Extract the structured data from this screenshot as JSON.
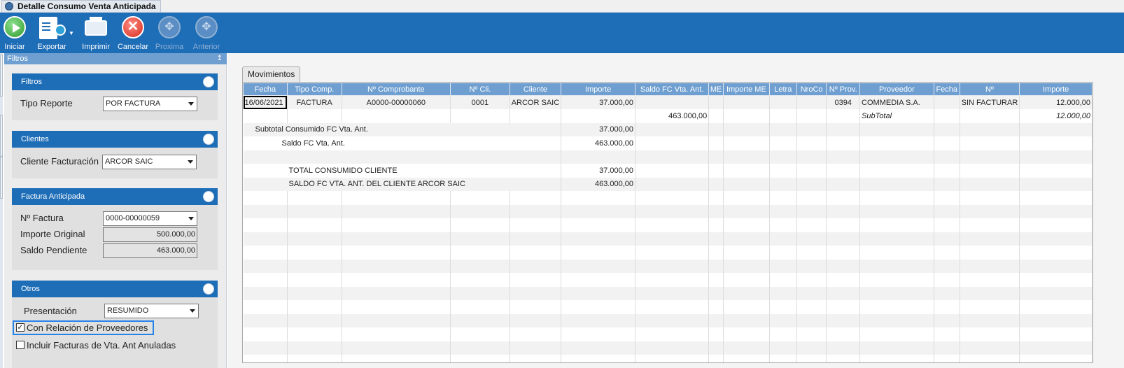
{
  "window": {
    "tab_title": "Detalle Consumo Venta Anticipada"
  },
  "toolbar": {
    "buttons": [
      {
        "label": "Iniciar",
        "icon": "play-icon",
        "enabled": true
      },
      {
        "label": "Exportar",
        "icon": "export-icon",
        "enabled": true
      },
      {
        "label": "Imprimir",
        "icon": "printer-icon",
        "enabled": true
      },
      {
        "label": "Cancelar",
        "icon": "cancel-icon",
        "enabled": true
      },
      {
        "label": "Proxima",
        "icon": "next-icon",
        "enabled": false
      },
      {
        "label": "Anterior",
        "icon": "previous-icon",
        "enabled": false
      }
    ]
  },
  "filters_panel": {
    "title": "Filtros",
    "pin": "↥",
    "filtros": {
      "title": "Filtros",
      "tipo_reporte_label": "Tipo Reporte",
      "tipo_reporte_value": "POR FACTURA"
    },
    "clientes": {
      "title": "Clientes",
      "cliente_label": "Cliente Facturación",
      "cliente_value": "ARCOR SAIC"
    },
    "factura": {
      "title": "Factura Anticipada",
      "nro_label": "Nº Factura",
      "nro_value": "0000-00000059",
      "importe_label": "Importe Original",
      "importe_value": "500.000,00",
      "saldo_label": "Saldo Pendiente",
      "saldo_value": "463.000,00"
    },
    "otros": {
      "title": "Otros",
      "presentacion_label": "Presentación",
      "presentacion_value": "RESUMIDO",
      "chk_proveedores_label": "Con Relación de Proveedores",
      "chk_proveedores_checked": true,
      "chk_anuladas_label": "Incluir Facturas de Vta. Ant Anuladas",
      "chk_anuladas_checked": false
    }
  },
  "movimientos": {
    "tab_label": "Movimientos",
    "columns": [
      "Fecha",
      "Tipo Comp.",
      "Nº Comprobante",
      "Nº Cli.",
      "Cliente",
      "Importe",
      "Saldo FC Vta. Ant.",
      "ME",
      "Importe ME",
      "Letra",
      "NroCo",
      "Nº Prov.",
      "Proveedor",
      "Fecha",
      "Nº",
      "Importe"
    ],
    "rows": [
      [
        "16/06/2021",
        "FACTURA",
        "A0000-00000060",
        "0001",
        "ARCOR SAIC",
        "37.000,00",
        "",
        "",
        "",
        "",
        "",
        "0394",
        "COMMEDIA S.A.",
        "",
        "SIN FACTURAR",
        "12.000,00"
      ],
      [
        "",
        "",
        "",
        "",
        "",
        "",
        "463.000,00",
        "",
        "",
        "",
        "",
        "",
        "SubTotal",
        "",
        "",
        "12.000,00"
      ]
    ],
    "summary": [
      {
        "label": "Subtotal Consumido FC Vta. Ant.",
        "value": "37.000,00"
      },
      {
        "label": "Saldo FC Vta. Ant.",
        "value": "463.000,00"
      },
      {
        "label": "",
        "value": ""
      },
      {
        "label": "TOTAL CONSUMIDO CLIENTE",
        "value": "37.000,00"
      },
      {
        "label": "SALDO FC VTA. ANT. DEL CLIENTE ARCOR SAIC",
        "value": "463.000,00"
      }
    ]
  }
}
